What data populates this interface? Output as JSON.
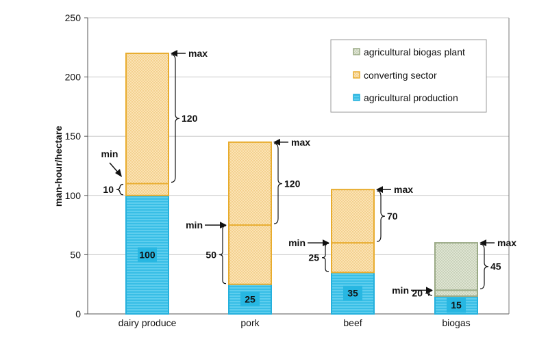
{
  "chart_data": {
    "type": "bar",
    "stacked": true,
    "ylabel": "man-hour/hectare",
    "xlabel": "",
    "ylim": [
      0,
      250
    ],
    "yticks": [
      0,
      50,
      100,
      150,
      200,
      250
    ],
    "grid": true,
    "legend_position": "top-right",
    "categories": [
      "dairy produce",
      "pork",
      "beef",
      "biogas"
    ],
    "series": [
      {
        "name": "agricultural production",
        "color": "#3cc3ea",
        "values": [
          100,
          25,
          35,
          15
        ]
      },
      {
        "name": "converting sector",
        "color": "#e8ac2e",
        "values": [
          120,
          120,
          70,
          0
        ]
      },
      {
        "name": "agricultural biogas plant",
        "color": "#a5b690",
        "values": [
          0,
          0,
          0,
          45
        ]
      }
    ],
    "min_line_values": [
      110,
      75,
      60,
      20
    ],
    "value_labels": [
      "100",
      "25",
      "35",
      "15"
    ],
    "annotations": {
      "max_label": "max",
      "min_label": "min",
      "range_labels": [
        "120",
        "120",
        "70",
        "45"
      ],
      "min_range_labels": [
        "10",
        "50",
        "25",
        "20"
      ]
    }
  }
}
